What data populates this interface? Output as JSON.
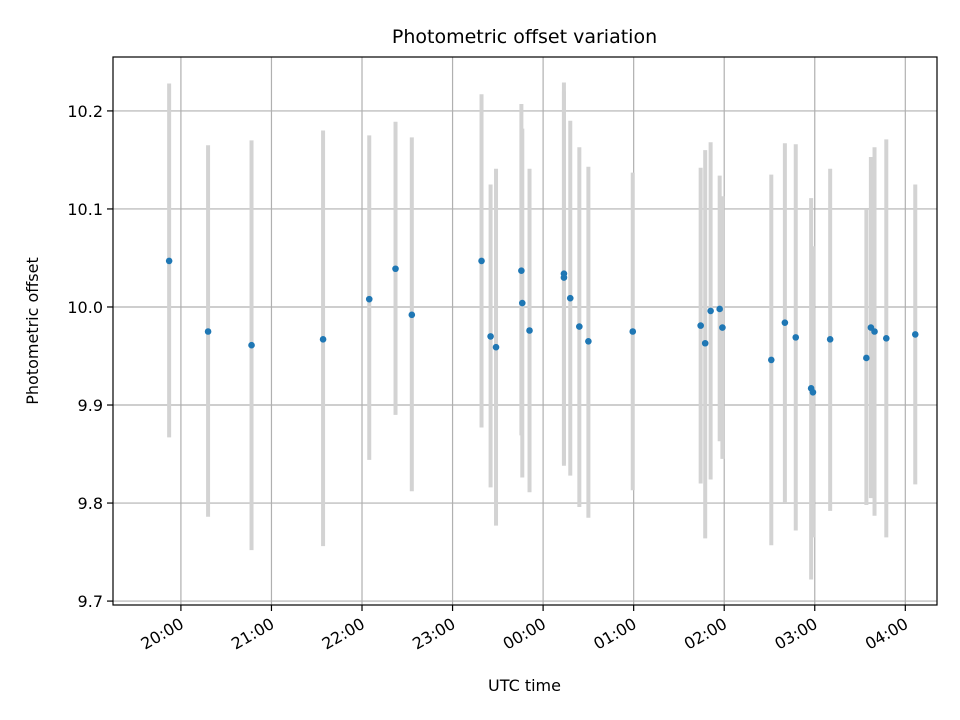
{
  "chart_data": {
    "type": "scatter",
    "title": "Photometric offset variation",
    "xlabel": "UTC time",
    "ylabel": "Photometric offset",
    "x_unit": "hours after 00:00 UTC (negative = previous evening)",
    "xlim": [
      -4.75,
      4.35
    ],
    "ylim": [
      9.696,
      10.255
    ],
    "grid": true,
    "legend": "none",
    "colors": {
      "point": "#1f77b4",
      "errorbar": "#d3d3d3",
      "grid": "#b0b0b0"
    },
    "x_ticks": [
      {
        "x": -4,
        "label": "20:00"
      },
      {
        "x": -3,
        "label": "21:00"
      },
      {
        "x": -2,
        "label": "22:00"
      },
      {
        "x": -1,
        "label": "23:00"
      },
      {
        "x": 0,
        "label": "00:00"
      },
      {
        "x": 1,
        "label": "01:00"
      },
      {
        "x": 2,
        "label": "02:00"
      },
      {
        "x": 3,
        "label": "03:00"
      },
      {
        "x": 4,
        "label": "04:00"
      }
    ],
    "y_ticks": [
      {
        "y": 9.7,
        "label": "9.7"
      },
      {
        "y": 9.8,
        "label": "9.8"
      },
      {
        "y": 9.9,
        "label": "9.9"
      },
      {
        "y": 10.0,
        "label": "10.0"
      },
      {
        "y": 10.1,
        "label": "10.1"
      },
      {
        "y": 10.2,
        "label": "10.2"
      }
    ],
    "points": [
      {
        "x": -4.13,
        "y": 10.047,
        "lo": 9.867,
        "hi": 10.228
      },
      {
        "x": -3.7,
        "y": 9.975,
        "lo": 9.786,
        "hi": 10.165
      },
      {
        "x": -3.22,
        "y": 9.961,
        "lo": 9.752,
        "hi": 10.17
      },
      {
        "x": -2.43,
        "y": 9.967,
        "lo": 9.756,
        "hi": 10.18
      },
      {
        "x": -1.92,
        "y": 10.008,
        "lo": 9.844,
        "hi": 10.175
      },
      {
        "x": -1.63,
        "y": 10.039,
        "lo": 9.89,
        "hi": 10.189
      },
      {
        "x": -1.45,
        "y": 9.992,
        "lo": 9.812,
        "hi": 10.173
      },
      {
        "x": -0.68,
        "y": 10.047,
        "lo": 9.877,
        "hi": 10.217
      },
      {
        "x": -0.58,
        "y": 9.97,
        "lo": 9.816,
        "hi": 10.125
      },
      {
        "x": -0.52,
        "y": 9.959,
        "lo": 9.777,
        "hi": 10.141
      },
      {
        "x": -0.24,
        "y": 10.037,
        "lo": 9.869,
        "hi": 10.207
      },
      {
        "x": -0.23,
        "y": 10.004,
        "lo": 9.826,
        "hi": 10.182
      },
      {
        "x": -0.15,
        "y": 9.976,
        "lo": 9.811,
        "hi": 10.141
      },
      {
        "x": 0.23,
        "y": 10.034,
        "lo": 9.838,
        "hi": 10.229
      },
      {
        "x": 0.23,
        "y": 10.03,
        "lo": 9.84,
        "hi": 10.22
      },
      {
        "x": 0.3,
        "y": 10.009,
        "lo": 9.828,
        "hi": 10.19
      },
      {
        "x": 0.4,
        "y": 9.98,
        "lo": 9.796,
        "hi": 10.163
      },
      {
        "x": 0.5,
        "y": 9.965,
        "lo": 9.785,
        "hi": 10.143
      },
      {
        "x": 0.99,
        "y": 9.975,
        "lo": 9.813,
        "hi": 10.137
      },
      {
        "x": 1.74,
        "y": 9.981,
        "lo": 9.82,
        "hi": 10.142
      },
      {
        "x": 1.79,
        "y": 9.963,
        "lo": 9.764,
        "hi": 10.16
      },
      {
        "x": 1.85,
        "y": 9.996,
        "lo": 9.824,
        "hi": 10.168
      },
      {
        "x": 1.95,
        "y": 9.998,
        "lo": 9.863,
        "hi": 10.134
      },
      {
        "x": 1.98,
        "y": 9.979,
        "lo": 9.845,
        "hi": 10.113
      },
      {
        "x": 2.52,
        "y": 9.946,
        "lo": 9.757,
        "hi": 10.135
      },
      {
        "x": 2.67,
        "y": 9.984,
        "lo": 9.801,
        "hi": 10.167
      },
      {
        "x": 2.79,
        "y": 9.969,
        "lo": 9.772,
        "hi": 10.166
      },
      {
        "x": 2.96,
        "y": 9.917,
        "lo": 9.722,
        "hi": 10.111
      },
      {
        "x": 2.98,
        "y": 9.913,
        "lo": 9.765,
        "hi": 10.062
      },
      {
        "x": 3.17,
        "y": 9.967,
        "lo": 9.792,
        "hi": 10.141
      },
      {
        "x": 3.57,
        "y": 9.948,
        "lo": 9.798,
        "hi": 10.099
      },
      {
        "x": 3.62,
        "y": 9.979,
        "lo": 9.805,
        "hi": 10.153
      },
      {
        "x": 3.66,
        "y": 9.975,
        "lo": 9.787,
        "hi": 10.163
      },
      {
        "x": 3.79,
        "y": 9.968,
        "lo": 9.765,
        "hi": 10.171
      },
      {
        "x": 4.11,
        "y": 9.972,
        "lo": 9.819,
        "hi": 10.125
      }
    ]
  }
}
